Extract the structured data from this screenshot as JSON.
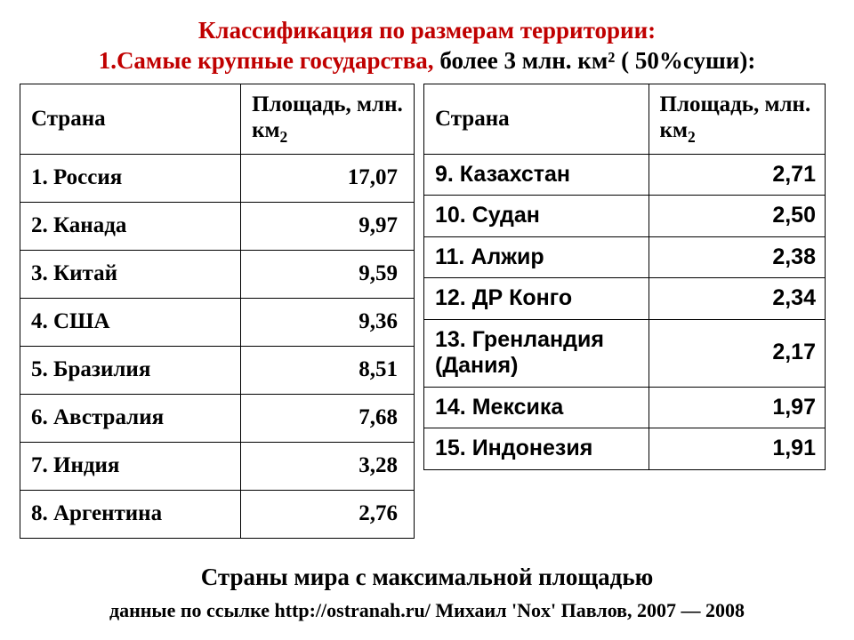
{
  "title": {
    "line1": "Классификация по размерам территории:",
    "line2_red": "1.Самые крупные государства, ",
    "line2_black": "более 3 млн. км² ( 50%суши):"
  },
  "header": {
    "country": "Страна",
    "area_prefix": "Площадь, млн. км",
    "area_sub": "2"
  },
  "left_table": {
    "rows": [
      {
        "country": "1. Россия",
        "area": "17,07"
      },
      {
        "country": "2. Канада",
        "area": "9,97"
      },
      {
        "country": "3. Китай",
        "area": "9,59"
      },
      {
        "country": "4. США",
        "area": "9,36"
      },
      {
        "country": "5. Бразилия",
        "area": "8,51"
      },
      {
        "country": "6. Австралия",
        "area": "7,68"
      },
      {
        "country": "7. Индия",
        "area": "3,28"
      },
      {
        "country": "8. Аргентина",
        "area": "2,76"
      }
    ]
  },
  "right_table": {
    "rows": [
      {
        "country": "9. Казахстан",
        "area": "2,71"
      },
      {
        "country": "10. Судан",
        "area": "2,50"
      },
      {
        "country": "11. Алжир",
        "area": "2,38"
      },
      {
        "country": "12. ДР Конго",
        "area": "2,34"
      },
      {
        "country": "13.  Гренландия (Дания)",
        "area": "2,17"
      },
      {
        "country": "14. Мексика",
        "area": "1,97"
      },
      {
        "country": "15.  Индонезия",
        "area": "1,91"
      }
    ]
  },
  "footer": {
    "caption": "Страны мира с максимальной площадью",
    "source": "данные по ссылке http://ostranah.ru/   Михаил 'Nox' Павлов, 2007 — 2008"
  },
  "style": {
    "title_color": "#c00000",
    "text_color": "#000000",
    "border_color": "#000000",
    "bg": "#ffffff",
    "left_font": "Times New Roman",
    "right_font": "Verdana",
    "cell_fontsize": 25,
    "title_fontsize": 27
  }
}
